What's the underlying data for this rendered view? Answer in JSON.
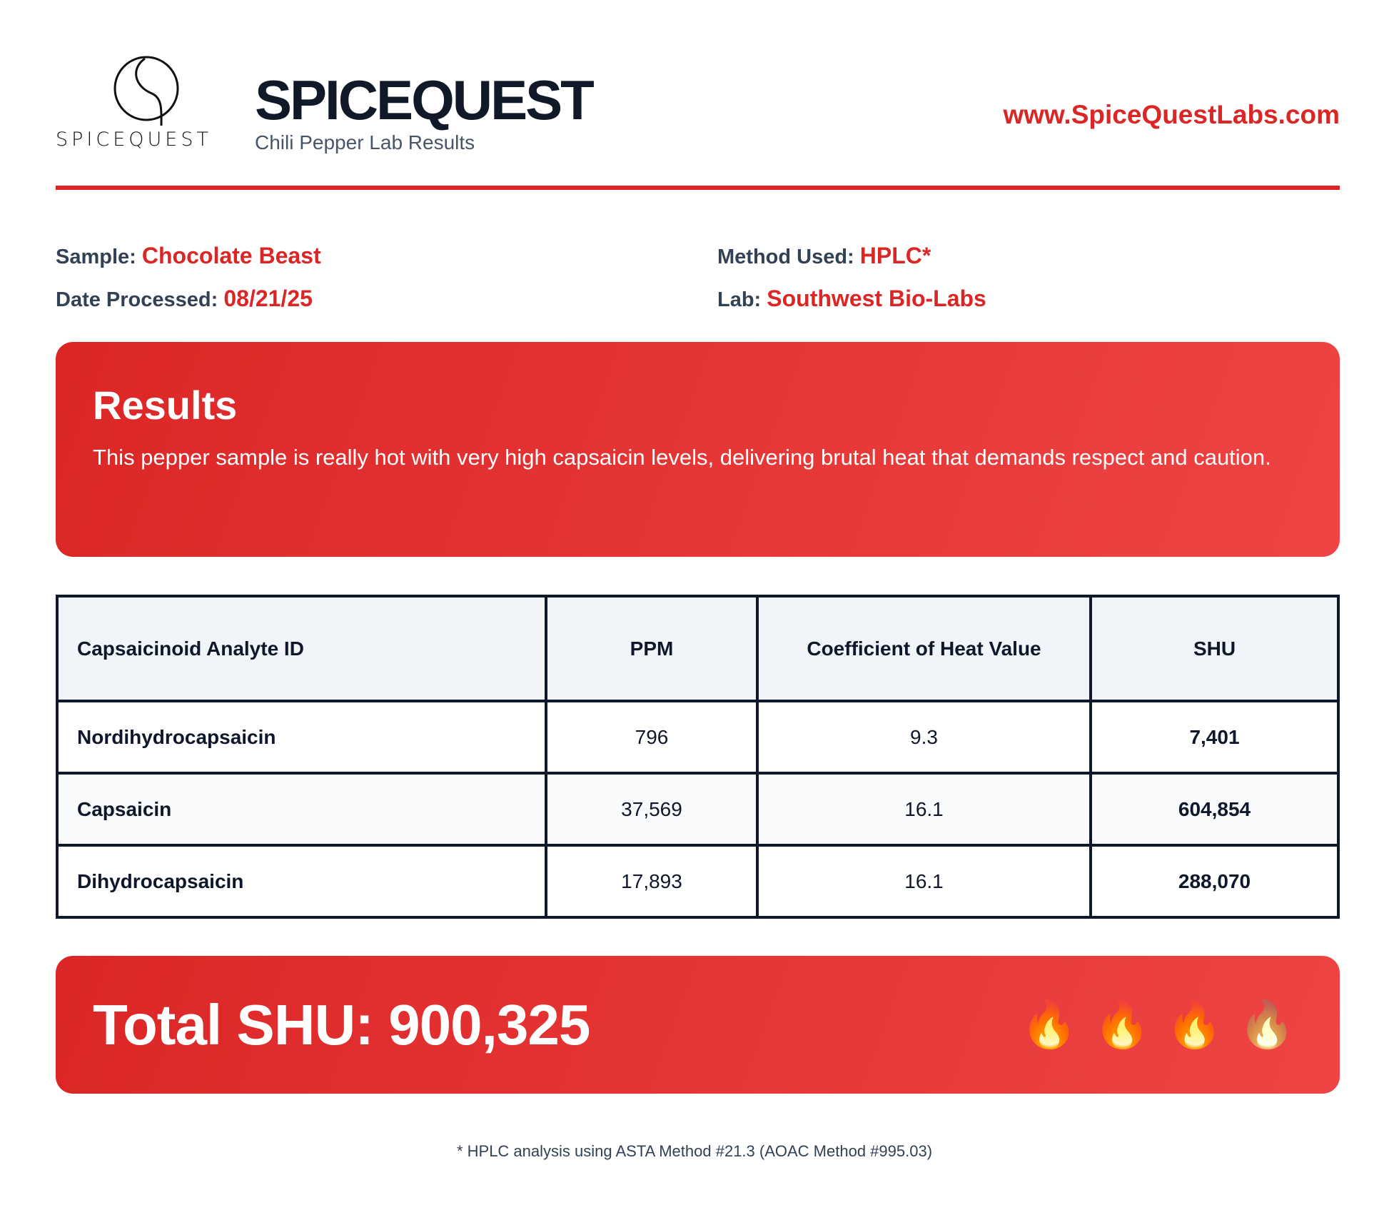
{
  "header": {
    "logo_text": "SPICEQUEST",
    "brand": "SPICEQUEST",
    "tagline": "Chili Pepper Lab Results",
    "url": "www.SpiceQuestLabs.com"
  },
  "info": {
    "sample_label": "Sample:",
    "sample": "Chocolate Beast",
    "date_label": "Date Processed:",
    "date": "08/21/25",
    "method_label": "Method Used:",
    "method": "HPLC*",
    "lab_label": "Lab:",
    "lab": "Southwest Bio-Labs"
  },
  "results": {
    "title": "Results",
    "text": "This pepper sample is really hot with very high capsaicin levels, delivering brutal heat that demands respect and caution."
  },
  "table": {
    "headers": [
      "Capsaicinoid Analyte ID",
      "PPM",
      "Coefficient of Heat Value",
      "SHU"
    ],
    "rows": [
      [
        "Nordihydrocapsaicin",
        "796",
        "9.3",
        "7,401"
      ],
      [
        "Capsaicin",
        "37,569",
        "16.1",
        "604,854"
      ],
      [
        "Dihydrocapsaicin",
        "17,893",
        "16.1",
        "288,070"
      ]
    ]
  },
  "total": {
    "label": "Total SHU: 900,325",
    "flame_icon": "🔥",
    "flames_total": 4,
    "flames_full": 3
  },
  "footnote": "* HPLC analysis using ASTA Method #21.3 (AOAC Method #995.03)",
  "colors": {
    "accent": "#dc2626",
    "dark": "#0f172a"
  }
}
